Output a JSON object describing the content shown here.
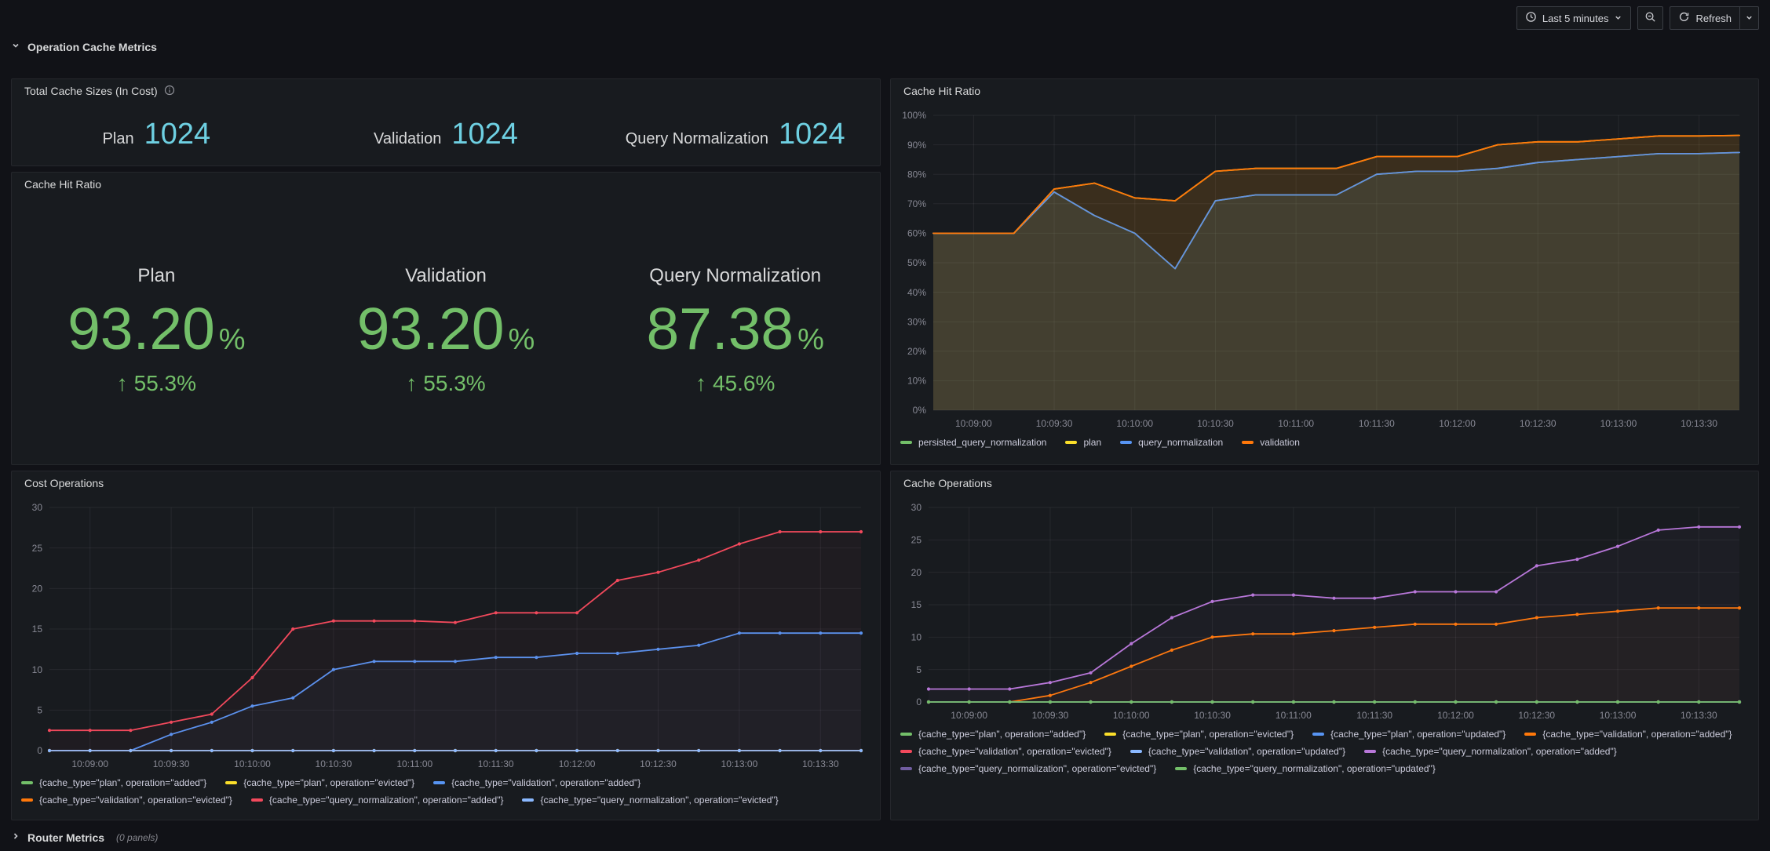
{
  "topbar": {
    "time_range": "Last 5 minutes",
    "refresh_label": "Refresh"
  },
  "glyphs": {
    "up_arrow": "↑"
  },
  "rows": {
    "operation_cache": {
      "title": "Operation Cache Metrics"
    },
    "router": {
      "title": "Router Metrics",
      "panels_count": "(0 panels)"
    }
  },
  "panels": {
    "total_cache": {
      "title": "Total Cache Sizes (In Cost)",
      "stats": [
        {
          "label": "Plan",
          "value": "1024"
        },
        {
          "label": "Validation",
          "value": "1024"
        },
        {
          "label": "Query Normalization",
          "value": "1024"
        }
      ]
    },
    "hit_ratio_stats": {
      "title": "Cache Hit Ratio",
      "stats": [
        {
          "label": "Plan",
          "value": "93.20",
          "unit": "%",
          "delta": "55.3%"
        },
        {
          "label": "Validation",
          "value": "93.20",
          "unit": "%",
          "delta": "55.3%"
        },
        {
          "label": "Query Normalization",
          "value": "87.38",
          "unit": "%",
          "delta": "45.6%"
        }
      ]
    }
  },
  "colors": {
    "green": "#73BF69",
    "yellow": "#FADE2A",
    "blue": "#5794F2",
    "orange": "#FF780A",
    "red": "#F2495C",
    "light_blue": "#8AB8FF",
    "purple": "#B877D9",
    "dark_purple": "#705DA0",
    "stat_cyan": "#6ED0E2",
    "stat_green": "#73BF69"
  },
  "chart_data": [
    {
      "id": "hit_ratio",
      "type": "line",
      "title": "Cache Hit Ratio",
      "ylim": [
        0,
        100
      ],
      "y_ticks": [
        0,
        10,
        20,
        30,
        40,
        50,
        60,
        70,
        80,
        90,
        100
      ],
      "y_suffix": "%",
      "x": [
        "10:08:45",
        "10:09:00",
        "10:09:15",
        "10:09:30",
        "10:09:45",
        "10:10:00",
        "10:10:15",
        "10:10:30",
        "10:10:45",
        "10:11:00",
        "10:11:15",
        "10:11:30",
        "10:11:45",
        "10:12:00",
        "10:12:15",
        "10:12:30",
        "10:12:45",
        "10:13:00",
        "10:13:15",
        "10:13:30",
        "10:13:45"
      ],
      "x_ticks": [
        "10:09:00",
        "10:09:30",
        "10:10:00",
        "10:10:30",
        "10:11:00",
        "10:11:30",
        "10:12:00",
        "10:12:30",
        "10:13:00",
        "10:13:30"
      ],
      "series": [
        {
          "name": "persisted_query_normalization",
          "color": "#73BF69",
          "values": [
            60,
            60,
            60,
            74,
            66,
            60,
            48,
            71,
            73,
            73,
            73,
            80,
            81,
            81,
            82,
            84,
            85,
            86,
            87,
            87,
            87.4
          ]
        },
        {
          "name": "plan",
          "color": "#FADE2A",
          "values": [
            60,
            60,
            60,
            75,
            77,
            72,
            71,
            81,
            82,
            82,
            82,
            86,
            86,
            86,
            90,
            91,
            91,
            92,
            93,
            93,
            93.2
          ]
        },
        {
          "name": "query_normalization",
          "color": "#5794F2",
          "values": [
            60,
            60,
            60,
            74,
            66,
            60,
            48,
            71,
            73,
            73,
            73,
            80,
            81,
            81,
            82,
            84,
            85,
            86,
            87,
            87,
            87.4
          ]
        },
        {
          "name": "validation",
          "color": "#FF780A",
          "values": [
            60,
            60,
            60,
            75,
            77,
            72,
            71,
            81,
            82,
            82,
            82,
            86,
            86,
            86,
            90,
            91,
            91,
            92,
            93,
            93,
            93.2
          ]
        }
      ]
    },
    {
      "id": "cost_operations",
      "type": "line",
      "title": "Cost Operations",
      "ylim": [
        0,
        30
      ],
      "y_ticks": [
        0,
        5,
        10,
        15,
        20,
        25,
        30
      ],
      "y_suffix": "",
      "x": [
        "10:08:45",
        "10:09:00",
        "10:09:15",
        "10:09:30",
        "10:09:45",
        "10:10:00",
        "10:10:15",
        "10:10:30",
        "10:10:45",
        "10:11:00",
        "10:11:15",
        "10:11:30",
        "10:11:45",
        "10:12:00",
        "10:12:15",
        "10:12:30",
        "10:12:45",
        "10:13:00",
        "10:13:15",
        "10:13:30",
        "10:13:45"
      ],
      "x_ticks": [
        "10:09:00",
        "10:09:30",
        "10:10:00",
        "10:10:30",
        "10:11:00",
        "10:11:30",
        "10:12:00",
        "10:12:30",
        "10:13:00",
        "10:13:30"
      ],
      "series": [
        {
          "name": "{cache_type=\"plan\", operation=\"added\"}",
          "color": "#73BF69",
          "values": [
            0,
            0,
            0,
            0,
            0,
            0,
            0,
            0,
            0,
            0,
            0,
            0,
            0,
            0,
            0,
            0,
            0,
            0,
            0,
            0,
            0
          ]
        },
        {
          "name": "{cache_type=\"plan\", operation=\"evicted\"}",
          "color": "#FADE2A",
          "values": [
            0,
            0,
            0,
            0,
            0,
            0,
            0,
            0,
            0,
            0,
            0,
            0,
            0,
            0,
            0,
            0,
            0,
            0,
            0,
            0,
            0
          ]
        },
        {
          "name": "{cache_type=\"validation\", operation=\"added\"}",
          "color": "#5794F2",
          "values": [
            0,
            0,
            0,
            2,
            3.5,
            5.5,
            6.5,
            10,
            11,
            11,
            11,
            11.5,
            11.5,
            12,
            12,
            12.5,
            13,
            14.5,
            14.5,
            14.5,
            14.5
          ]
        },
        {
          "name": "{cache_type=\"validation\", operation=\"evicted\"}",
          "color": "#FF780A",
          "values": [
            0,
            0,
            0,
            0,
            0,
            0,
            0,
            0,
            0,
            0,
            0,
            0,
            0,
            0,
            0,
            0,
            0,
            0,
            0,
            0,
            0
          ]
        },
        {
          "name": "{cache_type=\"query_normalization\", operation=\"added\"}",
          "color": "#F2495C",
          "values": [
            2.5,
            2.5,
            2.5,
            3.5,
            4.5,
            9,
            15,
            16,
            16,
            16,
            15.8,
            17,
            17,
            17,
            21,
            22,
            23.5,
            25.5,
            27,
            27,
            27
          ]
        },
        {
          "name": "{cache_type=\"query_normalization\", operation=\"evicted\"}",
          "color": "#8AB8FF",
          "values": [
            0,
            0,
            0,
            0,
            0,
            0,
            0,
            0,
            0,
            0,
            0,
            0,
            0,
            0,
            0,
            0,
            0,
            0,
            0,
            0,
            0
          ]
        }
      ]
    },
    {
      "id": "cache_operations",
      "type": "line",
      "title": "Cache Operations",
      "ylim": [
        0,
        30
      ],
      "y_ticks": [
        0,
        5,
        10,
        15,
        20,
        25,
        30
      ],
      "y_suffix": "",
      "x": [
        "10:08:45",
        "10:09:00",
        "10:09:15",
        "10:09:30",
        "10:09:45",
        "10:10:00",
        "10:10:15",
        "10:10:30",
        "10:10:45",
        "10:11:00",
        "10:11:15",
        "10:11:30",
        "10:11:45",
        "10:12:00",
        "10:12:15",
        "10:12:30",
        "10:12:45",
        "10:13:00",
        "10:13:15",
        "10:13:30",
        "10:13:45"
      ],
      "x_ticks": [
        "10:09:00",
        "10:09:30",
        "10:10:00",
        "10:10:30",
        "10:11:00",
        "10:11:30",
        "10:12:00",
        "10:12:30",
        "10:13:00",
        "10:13:30"
      ],
      "series": [
        {
          "name": "{cache_type=\"plan\", operation=\"added\"}",
          "color": "#73BF69",
          "values": [
            0,
            0,
            0,
            0,
            0,
            0,
            0,
            0,
            0,
            0,
            0,
            0,
            0,
            0,
            0,
            0,
            0,
            0,
            0,
            0,
            0
          ]
        },
        {
          "name": "{cache_type=\"plan\", operation=\"evicted\"}",
          "color": "#FADE2A",
          "values": [
            0,
            0,
            0,
            0,
            0,
            0,
            0,
            0,
            0,
            0,
            0,
            0,
            0,
            0,
            0,
            0,
            0,
            0,
            0,
            0,
            0
          ]
        },
        {
          "name": "{cache_type=\"plan\", operation=\"updated\"}",
          "color": "#5794F2",
          "values": [
            0,
            0,
            0,
            0,
            0,
            0,
            0,
            0,
            0,
            0,
            0,
            0,
            0,
            0,
            0,
            0,
            0,
            0,
            0,
            0,
            0
          ]
        },
        {
          "name": "{cache_type=\"validation\", operation=\"added\"}",
          "color": "#FF780A",
          "values": [
            0,
            0,
            0,
            1,
            3,
            5.5,
            8,
            10,
            10.5,
            10.5,
            11,
            11.5,
            12,
            12,
            12,
            13,
            13.5,
            14,
            14.5,
            14.5,
            14.5
          ]
        },
        {
          "name": "{cache_type=\"validation\", operation=\"evicted\"}",
          "color": "#F2495C",
          "values": [
            0,
            0,
            0,
            0,
            0,
            0,
            0,
            0,
            0,
            0,
            0,
            0,
            0,
            0,
            0,
            0,
            0,
            0,
            0,
            0,
            0
          ]
        },
        {
          "name": "{cache_type=\"validation\", operation=\"updated\"}",
          "color": "#8AB8FF",
          "values": [
            0,
            0,
            0,
            0,
            0,
            0,
            0,
            0,
            0,
            0,
            0,
            0,
            0,
            0,
            0,
            0,
            0,
            0,
            0,
            0,
            0
          ]
        },
        {
          "name": "{cache_type=\"query_normalization\", operation=\"added\"}",
          "color": "#B877D9",
          "values": [
            2,
            2,
            2,
            3,
            4.5,
            9,
            13,
            15.5,
            16.5,
            16.5,
            16,
            16,
            17,
            17,
            17,
            21,
            22,
            24,
            26.5,
            27,
            27
          ]
        },
        {
          "name": "{cache_type=\"query_normalization\", operation=\"evicted\"}",
          "color": "#705DA0",
          "values": [
            0,
            0,
            0,
            0,
            0,
            0,
            0,
            0,
            0,
            0,
            0,
            0,
            0,
            0,
            0,
            0,
            0,
            0,
            0,
            0,
            0
          ]
        },
        {
          "name": "{cache_type=\"query_normalization\", operation=\"updated\"}",
          "color": "#73BF69",
          "values": [
            0,
            0,
            0,
            0,
            0,
            0,
            0,
            0,
            0,
            0,
            0,
            0,
            0,
            0,
            0,
            0,
            0,
            0,
            0,
            0,
            0
          ]
        }
      ]
    }
  ]
}
